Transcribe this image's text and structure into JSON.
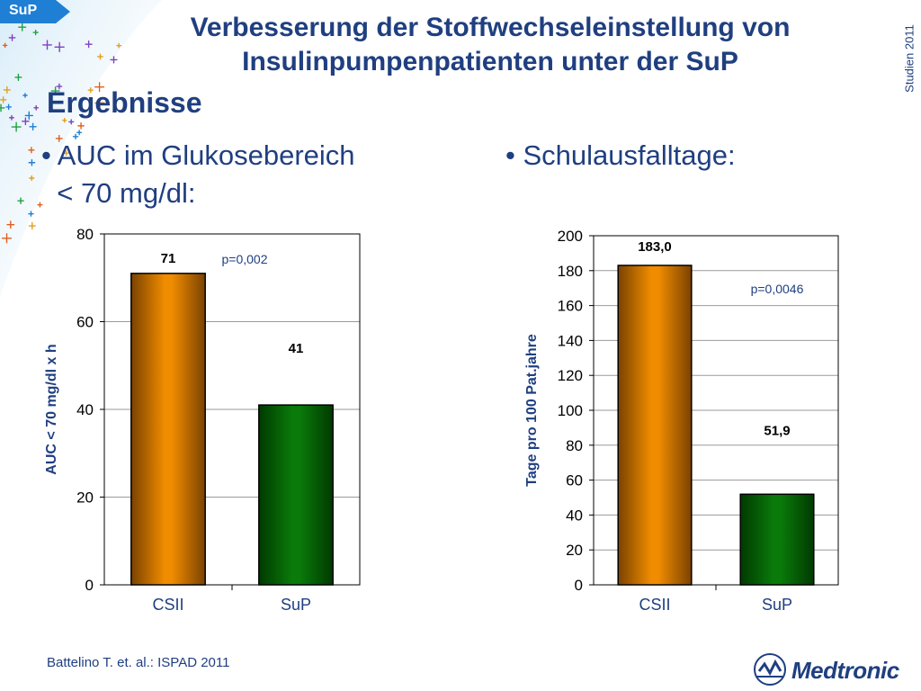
{
  "tag": {
    "label": "SuP"
  },
  "side_label": "Studien 2011",
  "title": {
    "line1": "Verbesserung der Stoffwechseleinstellung von",
    "line2": "Insulinpumpenpatienten unter der SuP"
  },
  "section_title": "Ergebnisse",
  "bullets": {
    "left_line1": "• AUC im Glukosebereich",
    "left_line2": "  < 70 mg/dl:",
    "right": "• Schulausfalltage:"
  },
  "chart_data": [
    {
      "type": "bar",
      "categories": [
        "CSII",
        "SuP"
      ],
      "values": [
        71,
        41
      ],
      "value_labels": [
        "71",
        "41"
      ],
      "ylabel": "AUC < 70 mg/dl x h",
      "ylim": [
        0,
        80
      ],
      "yticks": [
        "0",
        "20",
        "40",
        "60",
        "80"
      ],
      "annotation": "p=0,002",
      "colors": [
        "#f08c00",
        "#0a7a0a"
      ]
    },
    {
      "type": "bar",
      "categories": [
        "CSII",
        "SuP"
      ],
      "values": [
        183.0,
        51.9
      ],
      "value_labels": [
        "183,0",
        "51,9"
      ],
      "ylabel": "Tage pro 100 Pat.jahre",
      "ylim": [
        0,
        200
      ],
      "yticks": [
        "0",
        "20",
        "40",
        "60",
        "80",
        "100",
        "120",
        "140",
        "160",
        "180",
        "200"
      ],
      "annotation": "p=0,0046",
      "colors": [
        "#f08c00",
        "#0a7a0a"
      ]
    }
  ],
  "citation": "Battelino T. et. al.: ISPAD  2011",
  "logo": {
    "text": "Medtronic"
  }
}
